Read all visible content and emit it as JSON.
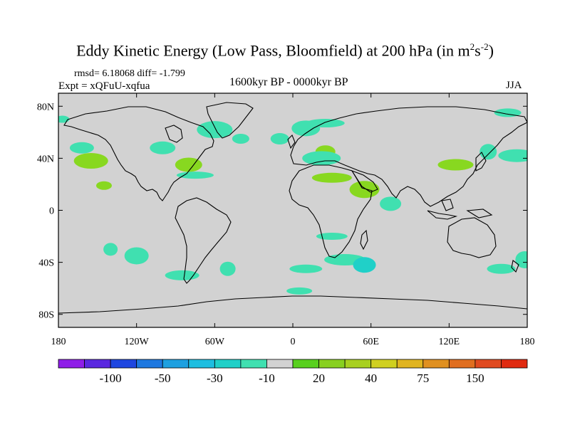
{
  "title": {
    "main": "Eddy Kinetic Energy (Low Pass, Bloomfield) at 200 hPa (in m",
    "sup1": "2",
    "mid": "s",
    "sup2": "-2",
    "end": ")"
  },
  "stats": "rmsd= 6.18068 diff= -1.799",
  "expt": "Expt = xQFuU-xqfua",
  "period": "1600kyr BP - 0000kyr BP",
  "season": "JJA",
  "map": {
    "lon_ticks": [
      "180",
      "120W",
      "60W",
      "0",
      "60E",
      "120E",
      "180"
    ],
    "lat_ticks": [
      "80N",
      "40N",
      "0",
      "40S",
      "80S"
    ],
    "lon_range": [
      -180,
      180
    ],
    "lat_range": [
      -90,
      90
    ],
    "background_color": "#d2d2d2",
    "anomaly_regions": [
      {
        "color": "#40e0b0",
        "lon": -177,
        "lat": 70
      },
      {
        "color": "#40e0b0",
        "lon": -162,
        "lat": 48
      },
      {
        "color": "#88d820",
        "lon": -155,
        "lat": 38
      },
      {
        "color": "#88d820",
        "lon": -145,
        "lat": 19
      },
      {
        "color": "#40e0b0",
        "lon": -100,
        "lat": 48
      },
      {
        "color": "#40e0b0",
        "lon": -60,
        "lat": 62
      },
      {
        "color": "#40e0b0",
        "lon": -40,
        "lat": 55
      },
      {
        "color": "#88d820",
        "lon": -80,
        "lat": 35
      },
      {
        "color": "#40e0b0",
        "lon": -75,
        "lat": 27
      },
      {
        "color": "#40e0b0",
        "lon": -10,
        "lat": 55
      },
      {
        "color": "#40e0b0",
        "lon": 10,
        "lat": 63
      },
      {
        "color": "#40e0b0",
        "lon": 25,
        "lat": 67
      },
      {
        "color": "#88d820",
        "lon": 25,
        "lat": 45
      },
      {
        "color": "#88d820",
        "lon": 55,
        "lat": 16
      },
      {
        "color": "#88d820",
        "lon": 30,
        "lat": 25
      },
      {
        "color": "#40e0b0",
        "lon": 75,
        "lat": 5
      },
      {
        "color": "#40e0b0",
        "lon": 30,
        "lat": -20
      },
      {
        "color": "#40e0b0",
        "lon": 40,
        "lat": -38
      },
      {
        "color": "#20d0c8",
        "lon": 55,
        "lat": -42
      },
      {
        "color": "#40e0b0",
        "lon": 10,
        "lat": -45
      },
      {
        "color": "#40e0b0",
        "lon": -140,
        "lat": -30
      },
      {
        "color": "#40e0b0",
        "lon": -120,
        "lat": -35
      },
      {
        "color": "#40e0b0",
        "lon": -85,
        "lat": -50
      },
      {
        "color": "#40e0b0",
        "lon": -50,
        "lat": -45
      },
      {
        "color": "#40e0b0",
        "lon": 5,
        "lat": -62
      },
      {
        "color": "#88d820",
        "lon": 125,
        "lat": 35
      },
      {
        "color": "#40e0b0",
        "lon": 150,
        "lat": 45
      },
      {
        "color": "#40e0b0",
        "lon": 165,
        "lat": 75
      },
      {
        "color": "#40e0b0",
        "lon": 172,
        "lat": 42
      },
      {
        "color": "#40e0b0",
        "lon": 178,
        "lat": -38
      },
      {
        "color": "#40e0b0",
        "lon": 160,
        "lat": -45
      },
      {
        "color": "#40e0b0",
        "lon": 22,
        "lat": 40
      }
    ]
  },
  "colorbar": {
    "colors": [
      "#8f1ee8",
      "#5a28e0",
      "#1e46e0",
      "#1e78e0",
      "#1ea0e0",
      "#1ebee0",
      "#20d0c8",
      "#40e0b0",
      "#d2d2d2",
      "#58d01e",
      "#88d020",
      "#a8d020",
      "#d0d020",
      "#e0b420",
      "#e09020",
      "#e06e20",
      "#e04a20",
      "#e02a10"
    ],
    "labels": [
      "-100",
      "-50",
      "-30",
      "-10",
      "20",
      "40",
      "75",
      "150"
    ]
  }
}
